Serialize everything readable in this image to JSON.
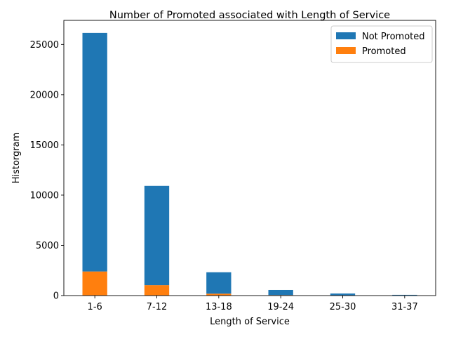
{
  "chart_data": {
    "type": "bar",
    "stacked": true,
    "title": "Number of Promoted associated with Length of Service",
    "xlabel": "Length of Service",
    "ylabel": "Historgram",
    "categories": [
      "1-6",
      "7-12",
      "13-18",
      "19-24",
      "25-30",
      "31-37"
    ],
    "series": [
      {
        "name": "Promoted",
        "color": "#ff7f0e",
        "values": [
          2400,
          1040,
          190,
          50,
          15,
          5
        ]
      },
      {
        "name": "Not Promoted",
        "color": "#1f77b4",
        "values": [
          23750,
          9880,
          2130,
          510,
          190,
          70
        ]
      }
    ],
    "ylim": [
      0,
      27400
    ],
    "yticks": [
      0,
      5000,
      10000,
      15000,
      20000,
      25000
    ],
    "grid": false,
    "legend": {
      "position": "top-right",
      "entries": [
        "Not Promoted",
        "Promoted"
      ]
    }
  }
}
